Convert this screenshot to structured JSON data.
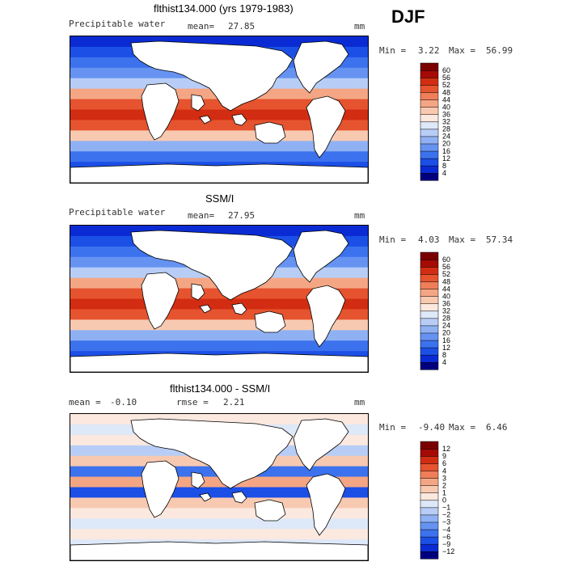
{
  "season": "DJF",
  "colors": {
    "mean_scale": [
      "#00007f",
      "#0a2bd4",
      "#1b4fe6",
      "#3c72ee",
      "#6693f2",
      "#8fb1f4",
      "#b7cdf6",
      "#dde8f8",
      "#fbe8df",
      "#f8c9b1",
      "#f4a684",
      "#ef7e59",
      "#e6532f",
      "#d22d12",
      "#a50a05",
      "#7a0000"
    ],
    "diff_scale": [
      "#00007f",
      "#0a2bd4",
      "#1b4fe6",
      "#3c72ee",
      "#6693f2",
      "#8fb1f4",
      "#b7cdf6",
      "#dde8f8",
      "#fbe8df",
      "#f8c9b1",
      "#f4a684",
      "#ef7e59",
      "#e6532f",
      "#d22d12",
      "#a50a05",
      "#7a0000"
    ]
  },
  "chart_data": [
    {
      "type": "heatmap",
      "title": "flthist134.000 (yrs 1979-1983)",
      "subtitle": "Precipitable water",
      "stat_label": "mean=",
      "stat_value": "27.85",
      "units": "mm",
      "min_label": "Min =",
      "min_value": "3.22",
      "max_label": "Max =",
      "max_value": "56.99",
      "colorbar_levels": [
        "4",
        "8",
        "12",
        "16",
        "20",
        "24",
        "28",
        "32",
        "36",
        "40",
        "44",
        "48",
        "52",
        "56",
        "60"
      ]
    },
    {
      "type": "heatmap",
      "title": "SSM/I",
      "subtitle": "Precipitable water",
      "stat_label": "mean=",
      "stat_value": "27.95",
      "units": "mm",
      "min_label": "Min =",
      "min_value": "4.03",
      "max_label": "Max =",
      "max_value": "57.34",
      "colorbar_levels": [
        "4",
        "8",
        "12",
        "16",
        "20",
        "24",
        "28",
        "32",
        "36",
        "40",
        "44",
        "48",
        "52",
        "56",
        "60"
      ]
    },
    {
      "type": "heatmap",
      "title": "flthist134.000 - SSM/I",
      "stat_label": "mean =",
      "stat_value": "-0.10",
      "stat2_label": "rmse =",
      "stat2_value": "2.21",
      "units": "mm",
      "min_label": "Min =",
      "min_value": "-9.40",
      "max_label": "Max =",
      "max_value": "6.46",
      "colorbar_levels": [
        "−12",
        "−9",
        "−6",
        "−4",
        "−3",
        "−2",
        "−1",
        "0",
        "1",
        "2",
        "3",
        "4",
        "6",
        "9",
        "12"
      ]
    }
  ]
}
